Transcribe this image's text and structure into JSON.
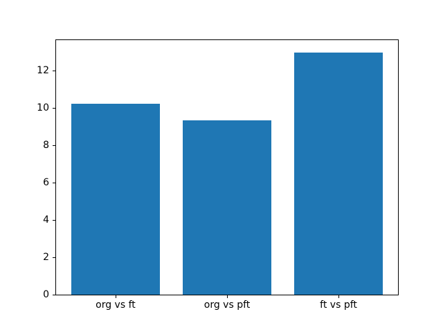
{
  "chart_data": {
    "type": "bar",
    "title": "",
    "xlabel": "",
    "ylabel": "",
    "categories": [
      "org vs ft",
      "org vs pft",
      "ft vs pft"
    ],
    "values": [
      10.25,
      9.35,
      13.0
    ],
    "yticks": [
      0,
      2,
      4,
      6,
      8,
      10,
      12
    ],
    "ylim": [
      0,
      13.65
    ],
    "xlim": [
      -0.54,
      2.54
    ],
    "bar_width": 0.8,
    "bar_color": "#1f77b4",
    "axis_color": "#000000",
    "text_color": "#000000",
    "background_color": "#ffffff",
    "grid": false,
    "legend": null
  }
}
